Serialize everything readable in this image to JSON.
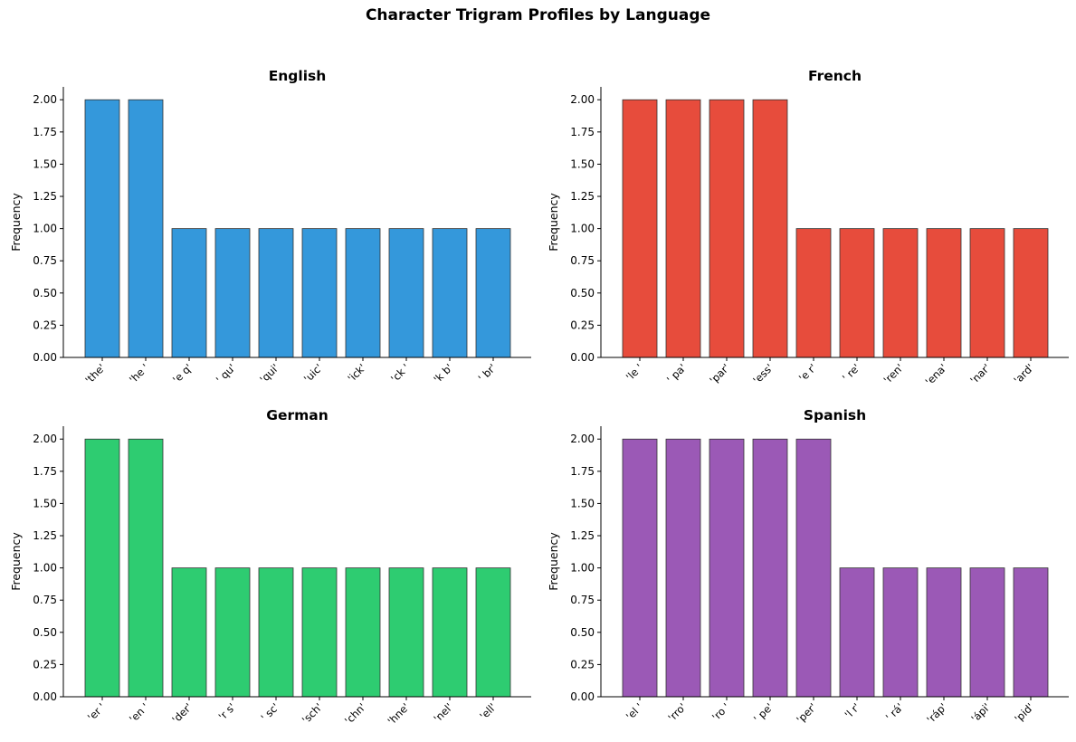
{
  "figure": {
    "title": "Character Trigram Profiles by Language"
  },
  "chart_data": [
    {
      "type": "bar",
      "title": "English",
      "xlabel": "",
      "ylabel": "Frequency",
      "color": "#3498db",
      "categories": [
        "'the'",
        "'he '",
        "'e q'",
        "' qu'",
        "'qui'",
        "'uic'",
        "'ick'",
        "'ck '",
        "'k b'",
        "' br'"
      ],
      "values": [
        2,
        2,
        1,
        1,
        1,
        1,
        1,
        1,
        1,
        1
      ],
      "ylim": [
        0,
        2.1
      ],
      "yticks": [
        "0.00",
        "0.25",
        "0.50",
        "0.75",
        "1.00",
        "1.25",
        "1.50",
        "1.75",
        "2.00"
      ],
      "grid": false
    },
    {
      "type": "bar",
      "title": "French",
      "xlabel": "",
      "ylabel": "Frequency",
      "color": "#e74c3c",
      "categories": [
        "'le '",
        "' pa'",
        "'par'",
        "'ess'",
        "'e r'",
        "' re'",
        "'ren'",
        "'ena'",
        "'nar'",
        "'ard'"
      ],
      "values": [
        2,
        2,
        2,
        2,
        1,
        1,
        1,
        1,
        1,
        1
      ],
      "ylim": [
        0,
        2.1
      ],
      "yticks": [
        "0.00",
        "0.25",
        "0.50",
        "0.75",
        "1.00",
        "1.25",
        "1.50",
        "1.75",
        "2.00"
      ],
      "grid": false
    },
    {
      "type": "bar",
      "title": "German",
      "xlabel": "",
      "ylabel": "Frequency",
      "color": "#2ecc71",
      "categories": [
        "'er '",
        "'en '",
        "'der'",
        "'r s'",
        "' sc'",
        "'sch'",
        "'chn'",
        "'hne'",
        "'nel'",
        "'ell'"
      ],
      "values": [
        2,
        2,
        1,
        1,
        1,
        1,
        1,
        1,
        1,
        1
      ],
      "ylim": [
        0,
        2.1
      ],
      "yticks": [
        "0.00",
        "0.25",
        "0.50",
        "0.75",
        "1.00",
        "1.25",
        "1.50",
        "1.75",
        "2.00"
      ],
      "grid": false
    },
    {
      "type": "bar",
      "title": "Spanish",
      "xlabel": "",
      "ylabel": "Frequency",
      "color": "#9b59b6",
      "categories": [
        "'el '",
        "'rro'",
        "'ro '",
        "' pe'",
        "'per'",
        "'l r'",
        "' rá'",
        "'ráp'",
        "'ápi'",
        "'pid'"
      ],
      "values": [
        2,
        2,
        2,
        2,
        2,
        1,
        1,
        1,
        1,
        1
      ],
      "ylim": [
        0,
        2.1
      ],
      "yticks": [
        "0.00",
        "0.25",
        "0.50",
        "0.75",
        "1.00",
        "1.25",
        "1.50",
        "1.75",
        "2.00"
      ],
      "grid": false
    }
  ]
}
